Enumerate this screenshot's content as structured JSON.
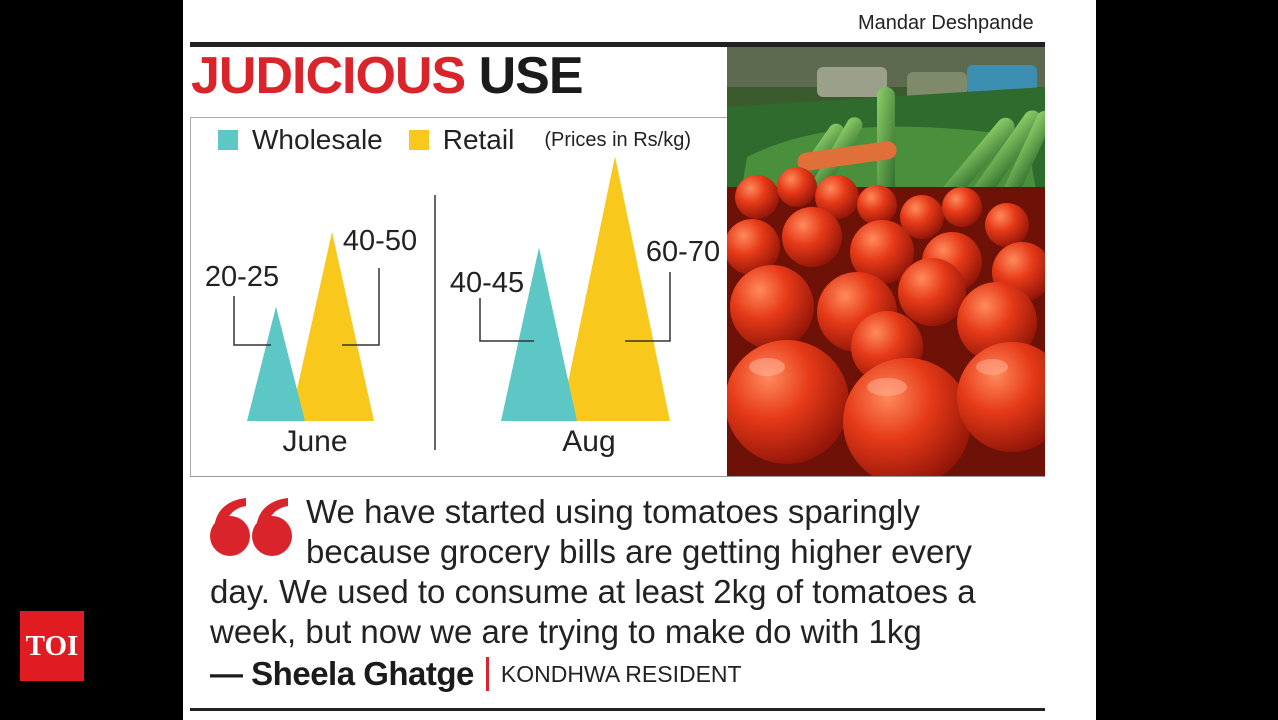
{
  "credit": "Mandar Deshpande",
  "headline": {
    "word1": "JUDICIOUS",
    "word2": "USE"
  },
  "legend": {
    "wholesale": "Wholesale",
    "retail": "Retail",
    "units": "(Prices in Rs/kg)"
  },
  "colors": {
    "wholesale": "#5cc7c4",
    "retail": "#f8c81c",
    "accent_red": "#d9242b"
  },
  "chart_data": {
    "type": "area",
    "title": "",
    "units": "(Prices in Rs/kg)",
    "categories": [
      "June",
      "Aug"
    ],
    "series": [
      {
        "name": "Wholesale",
        "labels": [
          "20-25",
          "40-45"
        ],
        "ranges": [
          [
            20,
            25
          ],
          [
            40,
            45
          ]
        ],
        "color": "#5cc7c4"
      },
      {
        "name": "Retail",
        "labels": [
          "40-50",
          "60-70"
        ],
        "ranges": [
          [
            40,
            50
          ],
          [
            60,
            70
          ]
        ],
        "color": "#f8c81c"
      }
    ]
  },
  "quote": {
    "lines": [
      "We have started using tomatoes sparingly",
      "because grocery bills are getting higher every",
      "day. We used to consume at least 2kg of tomatoes a",
      "week, but now we are trying to make do with 1kg"
    ],
    "name": "— Sheela Ghatge",
    "role": "KONDHWA RESIDENT"
  },
  "logo": "TOI"
}
